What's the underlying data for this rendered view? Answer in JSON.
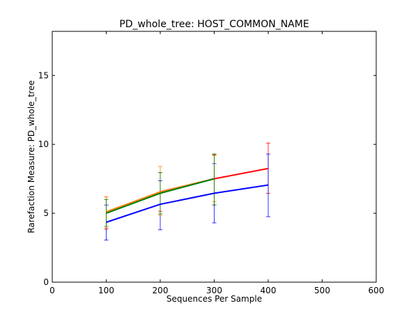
{
  "chart_data": {
    "type": "line",
    "title": "PD_whole_tree: HOST_COMMON_NAME",
    "xlabel": "Sequences Per Sample",
    "ylabel": "Rarefaction Measure: PD_whole_tree",
    "xlim": [
      0,
      600
    ],
    "ylim": [
      0,
      18.2
    ],
    "xticks": [
      0,
      100,
      200,
      300,
      400,
      500,
      600
    ],
    "xtick_labels": [
      "0",
      "100",
      "200",
      "300",
      "400",
      "500",
      "600"
    ],
    "yticks": [
      0,
      5,
      10,
      15
    ],
    "ytick_labels": [
      "0",
      "5",
      "10",
      "15"
    ],
    "grid": false,
    "legend": "none",
    "series": [
      {
        "color": "#ff0000",
        "x": [
          100,
          200,
          300,
          400
        ],
        "y": [
          5.05,
          6.55,
          7.5,
          8.25
        ],
        "err_low": [
          3.85,
          5.15,
          5.6,
          6.45
        ],
        "err_high": [
          6.2,
          7.95,
          9.25,
          10.1
        ]
      },
      {
        "color": "#0000ff",
        "x": [
          100,
          200,
          300,
          400
        ],
        "y": [
          4.35,
          5.65,
          6.45,
          7.05
        ],
        "err_low": [
          3.05,
          3.8,
          4.3,
          4.75
        ],
        "err_high": [
          5.6,
          7.35,
          8.6,
          9.3
        ]
      },
      {
        "color": "#ff8000",
        "x": [
          100,
          200,
          300
        ],
        "y": [
          5.1,
          6.55,
          7.5
        ],
        "err_low": [
          3.95,
          4.85,
          5.85
        ],
        "err_high": [
          6.2,
          8.4,
          9.2
        ]
      },
      {
        "color": "#008000",
        "x": [
          100,
          200,
          300
        ],
        "y": [
          5.0,
          6.45,
          7.5
        ],
        "err_low": [
          4.05,
          4.95,
          5.6
        ],
        "err_high": [
          6.0,
          7.95,
          9.3
        ]
      }
    ]
  }
}
